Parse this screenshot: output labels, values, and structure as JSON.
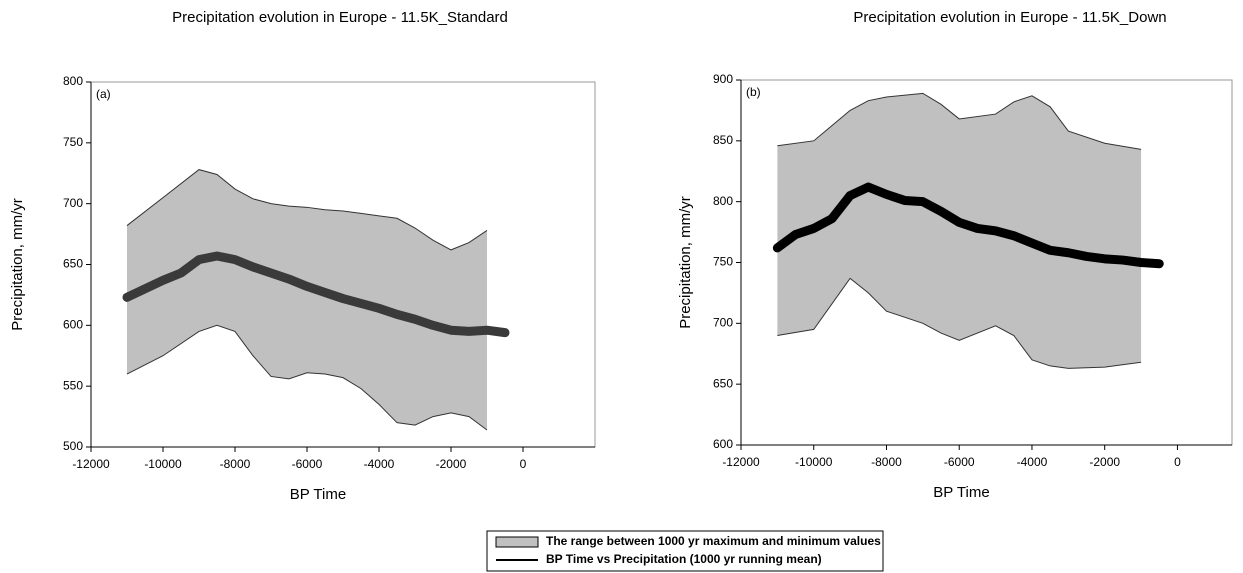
{
  "chart_data": [
    {
      "type": "band-line",
      "title": "Precipitation evolution in Europe - 11.5K_Standard",
      "panel_label": "(a)",
      "x_label": "BP Time",
      "y_label": "Precipitation, mm/yr",
      "xlim": [
        -12000,
        2000
      ],
      "xticks": [
        -12000,
        -10000,
        -8000,
        -6000,
        -4000,
        -2000,
        0
      ],
      "ylim": [
        500,
        800
      ],
      "yticks": [
        500,
        550,
        600,
        650,
        700,
        750,
        800
      ],
      "band": {
        "color": "#c0c0c0",
        "x": [
          -11000,
          -10000,
          -9000,
          -8500,
          -8000,
          -7500,
          -7000,
          -6500,
          -6000,
          -5500,
          -5000,
          -4500,
          -4000,
          -3500,
          -3000,
          -2500,
          -2000,
          -1500,
          -1000
        ],
        "upper": [
          682,
          705,
          728,
          724,
          712,
          704,
          700,
          698,
          697,
          695,
          694,
          692,
          690,
          688,
          680,
          670,
          662,
          668,
          678
        ],
        "lower": [
          560,
          575,
          595,
          600,
          595,
          575,
          558,
          556,
          561,
          560,
          557,
          548,
          535,
          520,
          518,
          525,
          528,
          525,
          514
        ]
      },
      "mean": {
        "color": "#3a3a3a",
        "x": [
          -11000,
          -10500,
          -10000,
          -9500,
          -9000,
          -8500,
          -8000,
          -7500,
          -7000,
          -6500,
          -6000,
          -5500,
          -5000,
          -4500,
          -4000,
          -3500,
          -3000,
          -2500,
          -2000,
          -1500,
          -1000,
          -500
        ],
        "values": [
          623,
          630,
          637,
          643,
          654,
          657,
          654,
          648,
          643,
          638,
          632,
          627,
          622,
          618,
          614,
          609,
          605,
          600,
          596,
          595,
          596,
          594
        ]
      }
    },
    {
      "type": "band-line",
      "title": "Precipitation evolution in Europe - 11.5K_Down",
      "panel_label": "(b)",
      "x_label": "BP Time",
      "y_label": "Precipitation, mm/yr",
      "xlim": [
        -12000,
        1500
      ],
      "xticks": [
        -12000,
        -10000,
        -8000,
        -6000,
        -4000,
        -2000,
        0
      ],
      "ylim": [
        600,
        900
      ],
      "yticks": [
        600,
        650,
        700,
        750,
        800,
        850,
        900
      ],
      "band": {
        "color": "#c0c0c0",
        "x": [
          -11000,
          -10000,
          -9000,
          -8500,
          -8000,
          -7000,
          -6500,
          -6000,
          -5000,
          -4500,
          -4000,
          -3500,
          -3000,
          -2000,
          -1000
        ],
        "upper": [
          846,
          850,
          875,
          883,
          886,
          889,
          880,
          868,
          872,
          882,
          887,
          878,
          858,
          848,
          843
        ],
        "lower": [
          690,
          695,
          737,
          725,
          710,
          700,
          692,
          686,
          698,
          690,
          670,
          665,
          663,
          664,
          668
        ]
      },
      "mean": {
        "color": "#000000",
        "x": [
          -11000,
          -10500,
          -10000,
          -9500,
          -9000,
          -8500,
          -8000,
          -7500,
          -7000,
          -6500,
          -6000,
          -5500,
          -5000,
          -4500,
          -4000,
          -3500,
          -3000,
          -2500,
          -2000,
          -1500,
          -1000,
          -500
        ],
        "values": [
          762,
          773,
          778,
          786,
          805,
          812,
          806,
          801,
          800,
          792,
          783,
          778,
          776,
          772,
          766,
          760,
          758,
          755,
          753,
          752,
          750,
          749
        ]
      }
    }
  ],
  "legend": [
    {
      "name": "The range between 1000 yr maximum and minimum values",
      "color": "#c0c0c0"
    },
    {
      "name": "BP Time vs Precipitation (1000 yr running mean)",
      "color": "#000000"
    }
  ]
}
